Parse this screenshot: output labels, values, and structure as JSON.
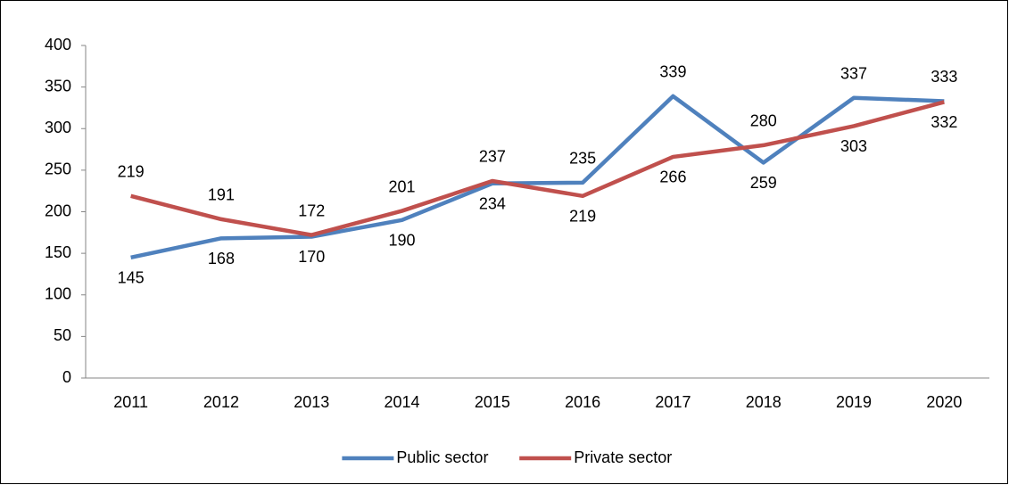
{
  "chart_data": {
    "type": "line",
    "categories": [
      "2011",
      "2012",
      "2013",
      "2014",
      "2015",
      "2016",
      "2017",
      "2018",
      "2019",
      "2020"
    ],
    "series": [
      {
        "name": "Public sector",
        "color": "#4f81bd",
        "values": [
          145,
          168,
          170,
          190,
          234,
          235,
          339,
          259,
          337,
          333
        ]
      },
      {
        "name": "Private sector",
        "color": "#c0504d",
        "values": [
          219,
          191,
          172,
          201,
          237,
          219,
          266,
          280,
          303,
          332
        ]
      }
    ],
    "ylim": [
      0,
      400
    ],
    "yticks": [
      0,
      50,
      100,
      150,
      200,
      250,
      300,
      350,
      400
    ],
    "grid": false,
    "legend": "bottom"
  }
}
